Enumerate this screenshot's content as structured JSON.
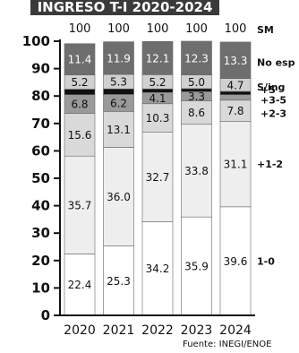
{
  "title": "INGRESO T-I 2020-2024",
  "source": "Fuente: INEGI/ENOE",
  "chart_data": {
    "type": "bar",
    "stacked": true,
    "categories": [
      "2020",
      "2021",
      "2022",
      "2023",
      "2024"
    ],
    "top_labels": [
      "100",
      "100",
      "100",
      "100",
      "100"
    ],
    "sm_label": "SM",
    "ylim": [
      0,
      100
    ],
    "yticks": [
      0,
      10,
      20,
      30,
      40,
      50,
      60,
      70,
      80,
      90,
      100
    ],
    "series": [
      {
        "name": "1-0",
        "color": "#ffffff",
        "text_color": "#111111",
        "values": [
          22.4,
          25.3,
          34.2,
          35.9,
          39.6
        ],
        "labels": [
          "22.4",
          "25.3",
          "34.2",
          "35.9",
          "39.6"
        ]
      },
      {
        "name": "+1-2",
        "color": "#eeeeee",
        "text_color": "#111111",
        "values": [
          35.7,
          36.0,
          32.7,
          33.8,
          31.1
        ],
        "labels": [
          "35.7",
          "36.0",
          "32.7",
          "33.8",
          "31.1"
        ]
      },
      {
        "name": "+2-3",
        "color": "#d9d9d9",
        "text_color": "#111111",
        "values": [
          15.6,
          13.1,
          10.3,
          8.6,
          7.8
        ],
        "labels": [
          "15.6",
          "13.1",
          "10.3",
          "8.6",
          "7.8"
        ]
      },
      {
        "name": "+3-5",
        "color": "#9a9a9a",
        "text_color": "#111111",
        "values": [
          6.8,
          6.2,
          4.1,
          3.3,
          2.0
        ],
        "labels": [
          "6.8",
          "6.2",
          "4.1",
          "3.3",
          ""
        ]
      },
      {
        "name": "+5",
        "color": "#111111",
        "text_color": "#ffffff",
        "values": [
          2.0,
          2.0,
          1.3,
          1.1,
          1.2
        ],
        "labels": [
          "",
          "",
          "",
          "",
          ""
        ]
      },
      {
        "name": "S/ing",
        "color": "#d0d0d0",
        "text_color": "#111111",
        "values": [
          5.2,
          5.3,
          5.2,
          5.0,
          4.7
        ],
        "labels": [
          "5.2",
          "5.3",
          "5.2",
          "5.0",
          "4.7"
        ]
      },
      {
        "name": "No esp",
        "color": "#6e6e6e",
        "text_color": "#ffffff",
        "values": [
          11.4,
          11.9,
          12.1,
          12.3,
          13.3
        ],
        "labels": [
          "11.4",
          "11.9",
          "12.1",
          "12.3",
          "13.3"
        ]
      }
    ]
  }
}
